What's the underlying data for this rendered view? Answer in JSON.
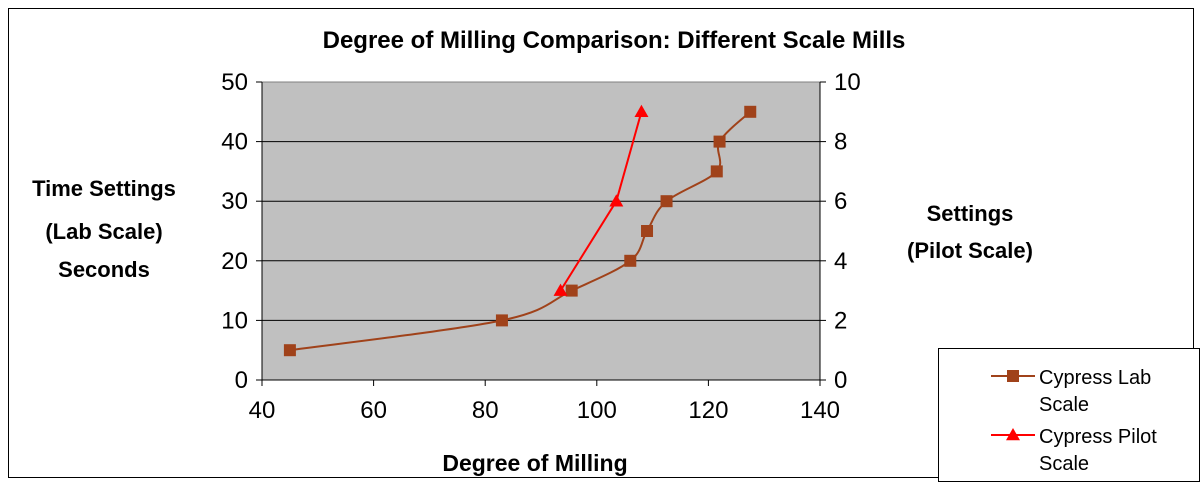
{
  "chart_data": {
    "type": "line",
    "title": "Degree of Milling Comparison: Different Scale Mills",
    "xlabel": "Degree of Milling",
    "ylabel_lines": [
      "Time Settings",
      "(Lab Scale)",
      "Seconds"
    ],
    "y2label_lines": [
      "Settings",
      "(Pilot Scale)"
    ],
    "xlim": [
      40,
      140
    ],
    "ylim": [
      0,
      50
    ],
    "y2lim": [
      0,
      10
    ],
    "x_ticks": [
      "40",
      "60",
      "80",
      "100",
      "120",
      "140"
    ],
    "y_ticks": [
      "0",
      "10",
      "20",
      "30",
      "40",
      "50"
    ],
    "y2_ticks": [
      "0",
      "2",
      "4",
      "6",
      "8",
      "10"
    ],
    "grid": true,
    "legend_position": "bottom-right",
    "series": [
      {
        "name_lines": [
          "Cypress Lab",
          "Scale"
        ],
        "axis": "left",
        "color": "#A0421A",
        "marker": "square",
        "x": [
          45,
          83,
          95.5,
          106,
          109,
          112.5,
          121.5,
          122,
          127.5
        ],
        "y": [
          5,
          10,
          15,
          20,
          25,
          30,
          35,
          40,
          45
        ]
      },
      {
        "name_lines": [
          "Cypress Pilot",
          "Scale"
        ],
        "axis": "right",
        "color": "#FF0000",
        "marker": "triangle",
        "x": [
          93.5,
          103.5,
          108
        ],
        "y": [
          3,
          6,
          9
        ]
      }
    ]
  },
  "colors": {
    "plot_background": "#C0C0C0",
    "grid": "#000000"
  }
}
